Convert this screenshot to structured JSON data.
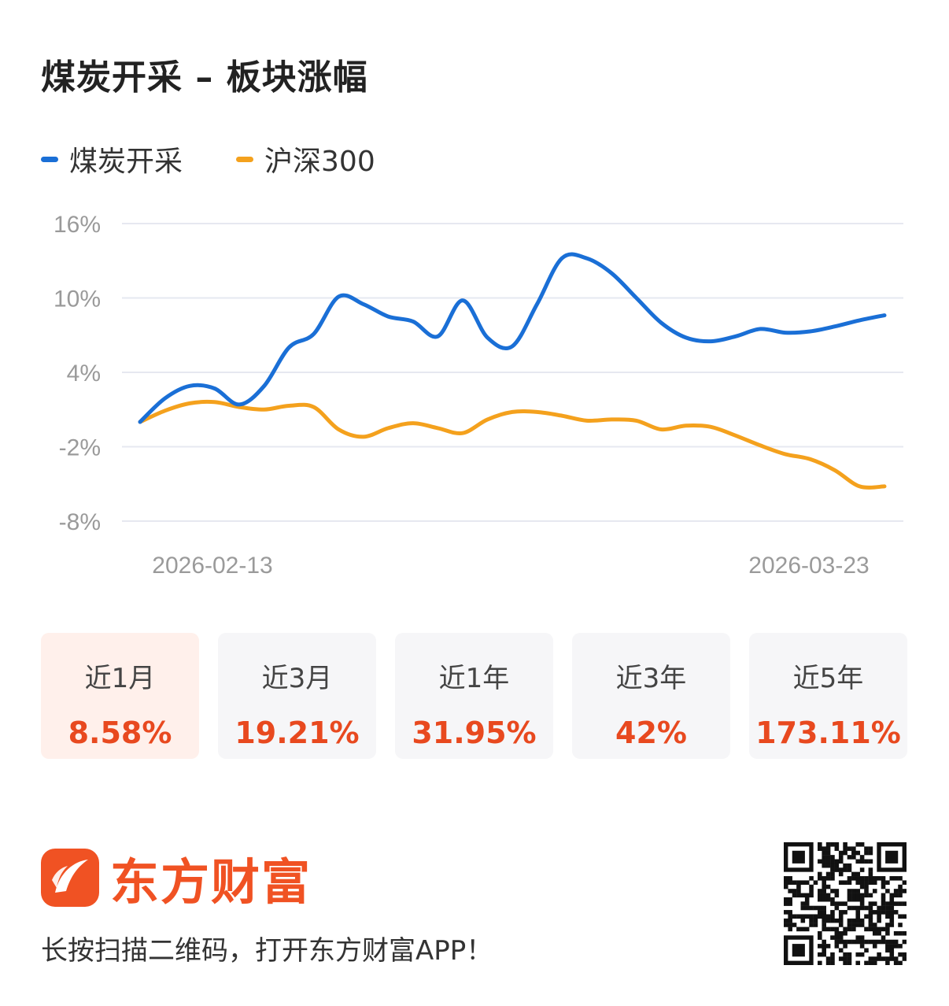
{
  "title": "煤炭开采 – 板块涨幅",
  "legend": [
    {
      "label": "煤炭开采",
      "color": "#1a6fd6"
    },
    {
      "label": "沪深300",
      "color": "#f4a11d"
    }
  ],
  "chart_data": {
    "type": "line",
    "title": "煤炭开采 – 板块涨幅",
    "xlabel": "",
    "ylabel": "",
    "x_ticks": [
      "2026-02-13",
      "2026-03-23"
    ],
    "y_ticks": [
      "16%",
      "10%",
      "4%",
      "-2%",
      "-8%"
    ],
    "ylim": [
      -8,
      16
    ],
    "grid": true,
    "legend_position": "top-left",
    "x": [
      "2026-02-10",
      "2026-02-11",
      "2026-02-12",
      "2026-02-13",
      "2026-02-16",
      "2026-02-17",
      "2026-02-18",
      "2026-02-19",
      "2026-02-20",
      "2026-02-23",
      "2026-02-24",
      "2026-02-25",
      "2026-02-26",
      "2026-02-27",
      "2026-03-02",
      "2026-03-03",
      "2026-03-04",
      "2026-03-05",
      "2026-03-06",
      "2026-03-09",
      "2026-03-10",
      "2026-03-11",
      "2026-03-12",
      "2026-03-13",
      "2026-03-16",
      "2026-03-17",
      "2026-03-18",
      "2026-03-19",
      "2026-03-20",
      "2026-03-23",
      "2026-03-24"
    ],
    "series": [
      {
        "name": "煤炭开采",
        "color": "#1a6fd6",
        "values": [
          0.0,
          1.9,
          2.9,
          2.7,
          1.4,
          2.9,
          6.0,
          7.1,
          10.1,
          9.5,
          8.5,
          8.1,
          6.9,
          9.8,
          6.8,
          6.1,
          9.5,
          13.2,
          13.2,
          12.0,
          10.0,
          8.0,
          6.8,
          6.5,
          6.9,
          7.5,
          7.2,
          7.3,
          7.7,
          8.2,
          8.6
        ]
      },
      {
        "name": "沪深300",
        "color": "#f4a11d",
        "values": [
          0.0,
          0.9,
          1.5,
          1.6,
          1.2,
          1.0,
          1.3,
          1.2,
          -0.6,
          -1.2,
          -0.5,
          -0.1,
          -0.5,
          -0.9,
          0.2,
          0.8,
          0.8,
          0.5,
          0.1,
          0.2,
          0.1,
          -0.6,
          -0.3,
          -0.4,
          -1.1,
          -1.9,
          -2.6,
          -3.0,
          -3.9,
          -5.2,
          -5.2
        ]
      }
    ]
  },
  "tabs": [
    {
      "label": "近1月",
      "value": "8.58%",
      "active": true
    },
    {
      "label": "近3月",
      "value": "19.21%",
      "active": false
    },
    {
      "label": "近1年",
      "value": "31.95%",
      "active": false
    },
    {
      "label": "近3年",
      "value": "42%",
      "active": false
    },
    {
      "label": "近5年",
      "value": "173.11%",
      "active": false
    }
  ],
  "brand": {
    "name": "东方财富",
    "color": "#f05223",
    "icon": "eastmoney-logo-icon"
  },
  "caption": "长按扫描二维码，打开东方财富APP！",
  "qr": {
    "icon": "qr-code-icon"
  }
}
